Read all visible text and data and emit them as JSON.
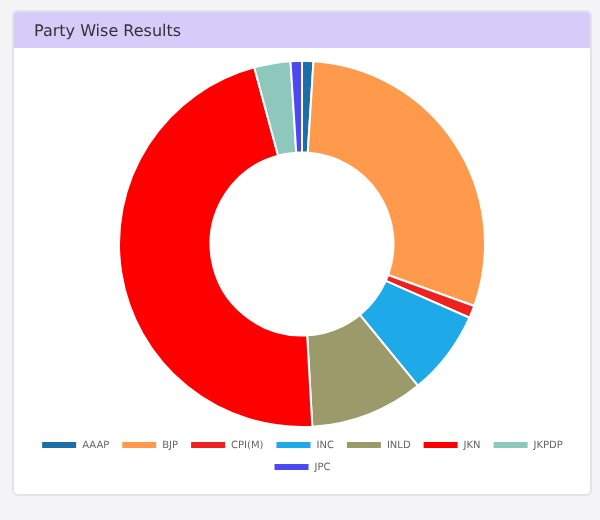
{
  "chart_data": {
    "type": "donut",
    "title": "Party Wise Results",
    "categories": [
      "AAAP",
      "BJP",
      "CPI(M)",
      "INC",
      "INLD",
      "JKN",
      "JKPDP",
      "JPC"
    ],
    "values": [
      1,
      29.5,
      1.1,
      7.5,
      10,
      46.7,
      3.2,
      1
    ],
    "colors": [
      "#1a6fa8",
      "#ff9a4d",
      "#ee2020",
      "#1eaae8",
      "#9a9a6a",
      "#ff0000",
      "#8ec7bc",
      "#4a4af0"
    ],
    "legend": "bottom"
  }
}
